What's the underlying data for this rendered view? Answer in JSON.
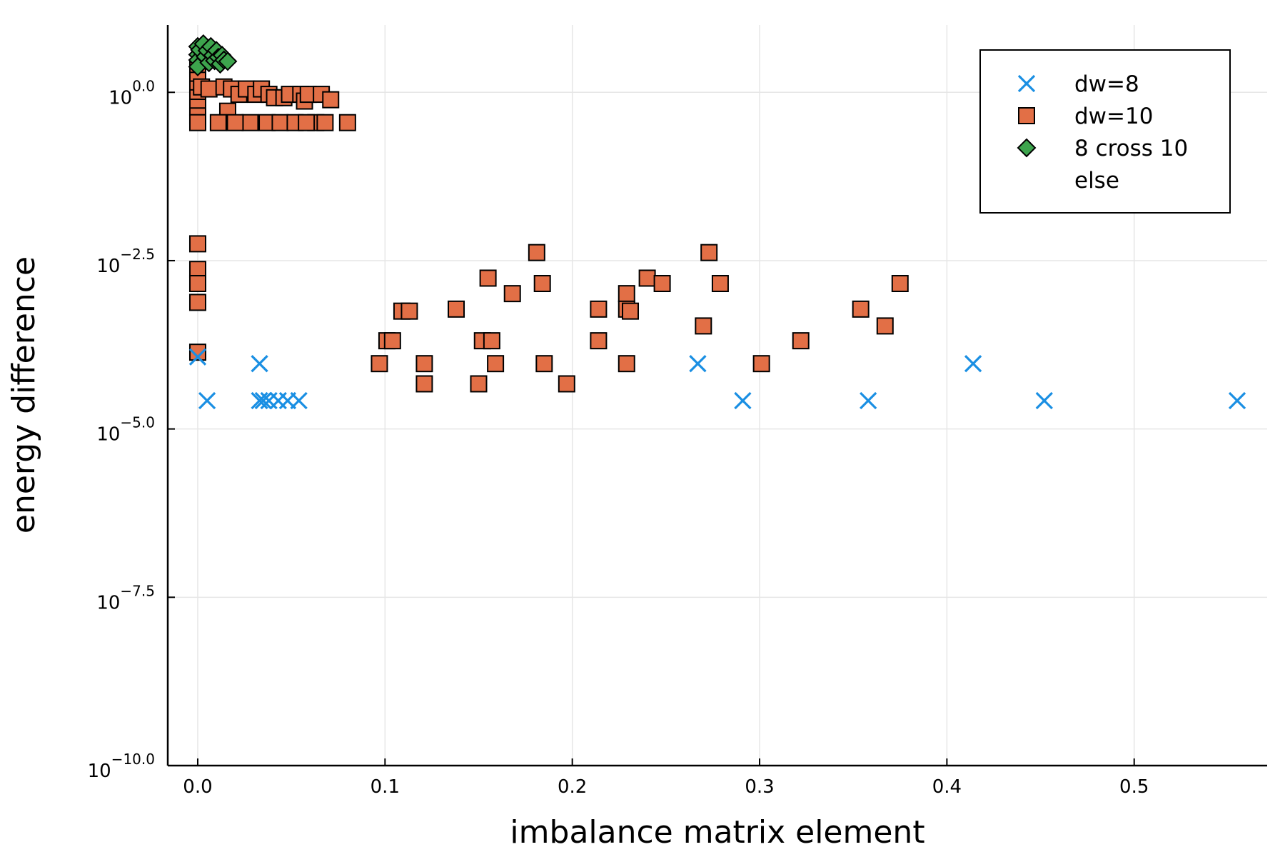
{
  "chart_data": {
    "type": "scatter",
    "xlabel": "imbalance matrix element",
    "ylabel": "energy difference",
    "xlim": [
      -0.016,
      0.571
    ],
    "ylim_log10": [
      -10.0,
      1.0
    ],
    "y_scale": "log10",
    "x_ticks": [
      0.0,
      0.1,
      0.2,
      0.3,
      0.4,
      0.5
    ],
    "x_tick_labels": [
      "0.0",
      "0.1",
      "0.2",
      "0.3",
      "0.4",
      "0.5"
    ],
    "y_ticks_log10": [
      0.0,
      -2.5,
      -5.0,
      -7.5,
      -10.0
    ],
    "y_tick_labels": [
      {
        "base": "10",
        "exp": "0.0"
      },
      {
        "base": "10",
        "exp": "−2.5"
      },
      {
        "base": "10",
        "exp": "−5.0"
      },
      {
        "base": "10",
        "exp": "−7.5"
      },
      {
        "base": "10",
        "exp": "−10.0"
      }
    ],
    "grid": true,
    "legend_position": "top-right",
    "legend": [
      {
        "label": "dw=8",
        "marker": "x",
        "color": "#1a8fe3"
      },
      {
        "label": "dw=10",
        "marker": "square",
        "color": "#e26f46"
      },
      {
        "label": "8 cross 10",
        "marker": "diamond",
        "color": "#3da44d"
      },
      {
        "label": "else",
        "marker": "none",
        "color": ""
      }
    ],
    "series": [
      {
        "name": "dw=8",
        "marker": "x",
        "color": "#1a8fe3",
        "points": [
          [
            0.0,
            -3.93
          ],
          [
            0.005,
            -4.58
          ],
          [
            0.033,
            -4.03
          ],
          [
            0.033,
            -4.58
          ],
          [
            0.035,
            -4.58
          ],
          [
            0.038,
            -4.58
          ],
          [
            0.043,
            -4.58
          ],
          [
            0.048,
            -4.58
          ],
          [
            0.054,
            -4.58
          ],
          [
            0.267,
            -4.03
          ],
          [
            0.291,
            -4.58
          ],
          [
            0.358,
            -4.58
          ],
          [
            0.414,
            -4.03
          ],
          [
            0.452,
            -4.58
          ],
          [
            0.555,
            -4.58
          ]
        ]
      },
      {
        "name": "dw=10",
        "marker": "square",
        "color": "#e26f46",
        "points": [
          [
            0.0,
            0.35
          ],
          [
            0.0,
            0.18
          ],
          [
            0.0,
            0.05
          ],
          [
            0.0,
            -0.08
          ],
          [
            0.0,
            -0.22
          ],
          [
            0.0,
            -0.35
          ],
          [
            0.0,
            -0.45
          ],
          [
            0.002,
            0.08
          ],
          [
            0.006,
            0.05
          ],
          [
            0.014,
            0.08
          ],
          [
            0.016,
            -0.28
          ],
          [
            0.018,
            0.05
          ],
          [
            0.022,
            -0.03
          ],
          [
            0.026,
            0.05
          ],
          [
            0.028,
            -0.45
          ],
          [
            0.031,
            -0.03
          ],
          [
            0.034,
            0.05
          ],
          [
            0.037,
            -0.45
          ],
          [
            0.038,
            -0.03
          ],
          [
            0.041,
            -0.08
          ],
          [
            0.044,
            -0.45
          ],
          [
            0.046,
            -0.08
          ],
          [
            0.049,
            -0.03
          ],
          [
            0.052,
            -0.45
          ],
          [
            0.055,
            -0.03
          ],
          [
            0.057,
            -0.13
          ],
          [
            0.059,
            -0.03
          ],
          [
            0.063,
            -0.45
          ],
          [
            0.066,
            -0.03
          ],
          [
            0.068,
            -0.45
          ],
          [
            0.071,
            -0.11
          ],
          [
            0.08,
            -0.45
          ],
          [
            0.011,
            -0.45
          ],
          [
            0.02,
            -0.45
          ],
          [
            0.058,
            -0.45
          ],
          [
            0.0,
            -2.25
          ],
          [
            0.0,
            -2.63
          ],
          [
            0.0,
            -2.84
          ],
          [
            0.0,
            -3.12
          ],
          [
            0.0,
            -3.86
          ],
          [
            0.097,
            -4.03
          ],
          [
            0.101,
            -3.69
          ],
          [
            0.104,
            -3.69
          ],
          [
            0.109,
            -3.25
          ],
          [
            0.113,
            -3.25
          ],
          [
            0.121,
            -4.03
          ],
          [
            0.121,
            -4.33
          ],
          [
            0.138,
            -3.22
          ],
          [
            0.15,
            -4.33
          ],
          [
            0.152,
            -3.69
          ],
          [
            0.155,
            -2.76
          ],
          [
            0.157,
            -3.69
          ],
          [
            0.159,
            -4.03
          ],
          [
            0.168,
            -2.99
          ],
          [
            0.181,
            -2.38
          ],
          [
            0.184,
            -2.84
          ],
          [
            0.185,
            -4.03
          ],
          [
            0.197,
            -4.33
          ],
          [
            0.214,
            -3.22
          ],
          [
            0.214,
            -3.69
          ],
          [
            0.229,
            -2.99
          ],
          [
            0.229,
            -3.22
          ],
          [
            0.229,
            -4.03
          ],
          [
            0.231,
            -3.25
          ],
          [
            0.24,
            -2.76
          ],
          [
            0.248,
            -2.84
          ],
          [
            0.27,
            -3.47
          ],
          [
            0.273,
            -2.38
          ],
          [
            0.279,
            -2.84
          ],
          [
            0.301,
            -4.03
          ],
          [
            0.322,
            -3.69
          ],
          [
            0.354,
            -3.22
          ],
          [
            0.367,
            -3.47
          ],
          [
            0.375,
            -2.84
          ]
        ]
      },
      {
        "name": "8 cross 10",
        "marker": "diamond",
        "color": "#3da44d",
        "points": [
          [
            0.0,
            0.68
          ],
          [
            0.0,
            0.56
          ],
          [
            0.0,
            0.48
          ],
          [
            0.0,
            0.38
          ],
          [
            0.001,
            0.63
          ],
          [
            0.003,
            0.72
          ],
          [
            0.004,
            0.53
          ],
          [
            0.005,
            0.62
          ],
          [
            0.006,
            0.44
          ],
          [
            0.007,
            0.68
          ],
          [
            0.008,
            0.55
          ],
          [
            0.009,
            0.47
          ],
          [
            0.01,
            0.62
          ],
          [
            0.011,
            0.52
          ],
          [
            0.012,
            0.42
          ],
          [
            0.013,
            0.55
          ],
          [
            0.014,
            0.48
          ],
          [
            0.016,
            0.46
          ]
        ]
      }
    ]
  }
}
